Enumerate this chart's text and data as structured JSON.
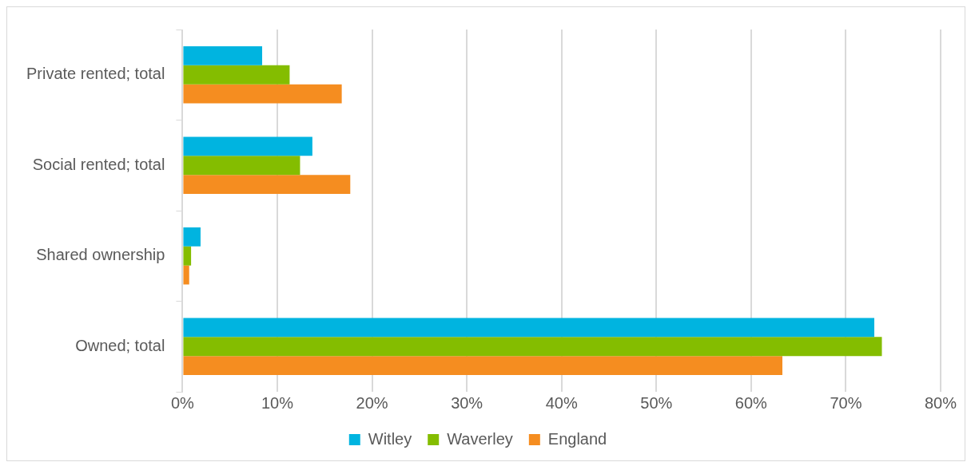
{
  "chart_data": {
    "type": "bar",
    "orientation": "horizontal",
    "categories": [
      "Private rented; total",
      "Social rented; total",
      "Shared ownership",
      "Owned; total"
    ],
    "series": [
      {
        "name": "Witley",
        "color": "#00b4e0",
        "values": [
          8.4,
          13.7,
          1.9,
          73.0
        ]
      },
      {
        "name": "Waverley",
        "color": "#84bd00",
        "values": [
          11.3,
          12.4,
          0.9,
          73.8
        ]
      },
      {
        "name": "England",
        "color": "#f58d20",
        "values": [
          16.8,
          17.7,
          0.7,
          63.3
        ]
      }
    ],
    "xlim": [
      0,
      80
    ],
    "xticks": [
      {
        "value": 0,
        "label": "0%"
      },
      {
        "value": 10,
        "label": "10%"
      },
      {
        "value": 20,
        "label": "20%"
      },
      {
        "value": 30,
        "label": "30%"
      },
      {
        "value": 40,
        "label": "40%"
      },
      {
        "value": 50,
        "label": "50%"
      },
      {
        "value": 60,
        "label": "60%"
      },
      {
        "value": 70,
        "label": "70%"
      },
      {
        "value": 80,
        "label": "80%"
      }
    ],
    "grid": "x",
    "legend": "bottom"
  }
}
